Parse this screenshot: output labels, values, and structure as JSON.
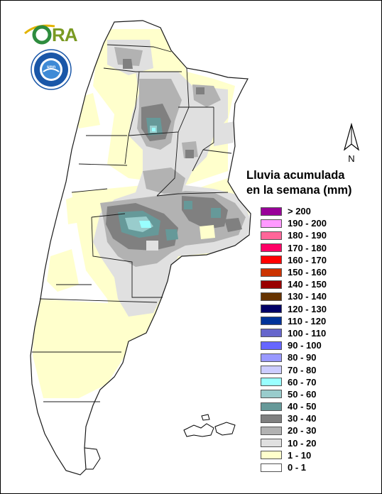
{
  "logo": {
    "text_o": "O",
    "text_ra": "RA"
  },
  "seal": {
    "ring_text": "SERVICIO METEOROLÓGICO NACIONAL",
    "bottom_text": "ARGENTINA",
    "inner": "smn"
  },
  "north": {
    "label": "N"
  },
  "legend": {
    "title_line1": "Lluvia acumulada",
    "title_line2": "en la semana (mm)",
    "items": [
      {
        "label": "> 200",
        "color": "#990099"
      },
      {
        "label": "190 - 200",
        "color": "#ff99ff"
      },
      {
        "label": "180 - 190",
        "color": "#ff6699"
      },
      {
        "label": "170 - 180",
        "color": "#ff0066"
      },
      {
        "label": "160 - 170",
        "color": "#ff0000"
      },
      {
        "label": "150 - 160",
        "color": "#cc3300"
      },
      {
        "label": "140 - 150",
        "color": "#990000"
      },
      {
        "label": "130 - 140",
        "color": "#663300"
      },
      {
        "label": "120 - 130",
        "color": "#000066"
      },
      {
        "label": "110 - 120",
        "color": "#003399"
      },
      {
        "label": "100 - 110",
        "color": "#6666cc"
      },
      {
        "label": "90 - 100",
        "color": "#6666ff"
      },
      {
        "label": "80 - 90",
        "color": "#9999ff"
      },
      {
        "label": "70 - 80",
        "color": "#ccccff"
      },
      {
        "label": "60 - 70",
        "color": "#99ffff"
      },
      {
        "label": "50 - 60",
        "color": "#99cccc"
      },
      {
        "label": "40 - 50",
        "color": "#669999"
      },
      {
        "label": "30 - 40",
        "color": "#808080"
      },
      {
        "label": "20 - 30",
        "color": "#b2b2b2"
      },
      {
        "label": "10 - 20",
        "color": "#e0e0e0"
      },
      {
        "label": "1 - 10",
        "color": "#ffffcc"
      },
      {
        "label": "0 - 1",
        "color": "#ffffff"
      }
    ]
  }
}
